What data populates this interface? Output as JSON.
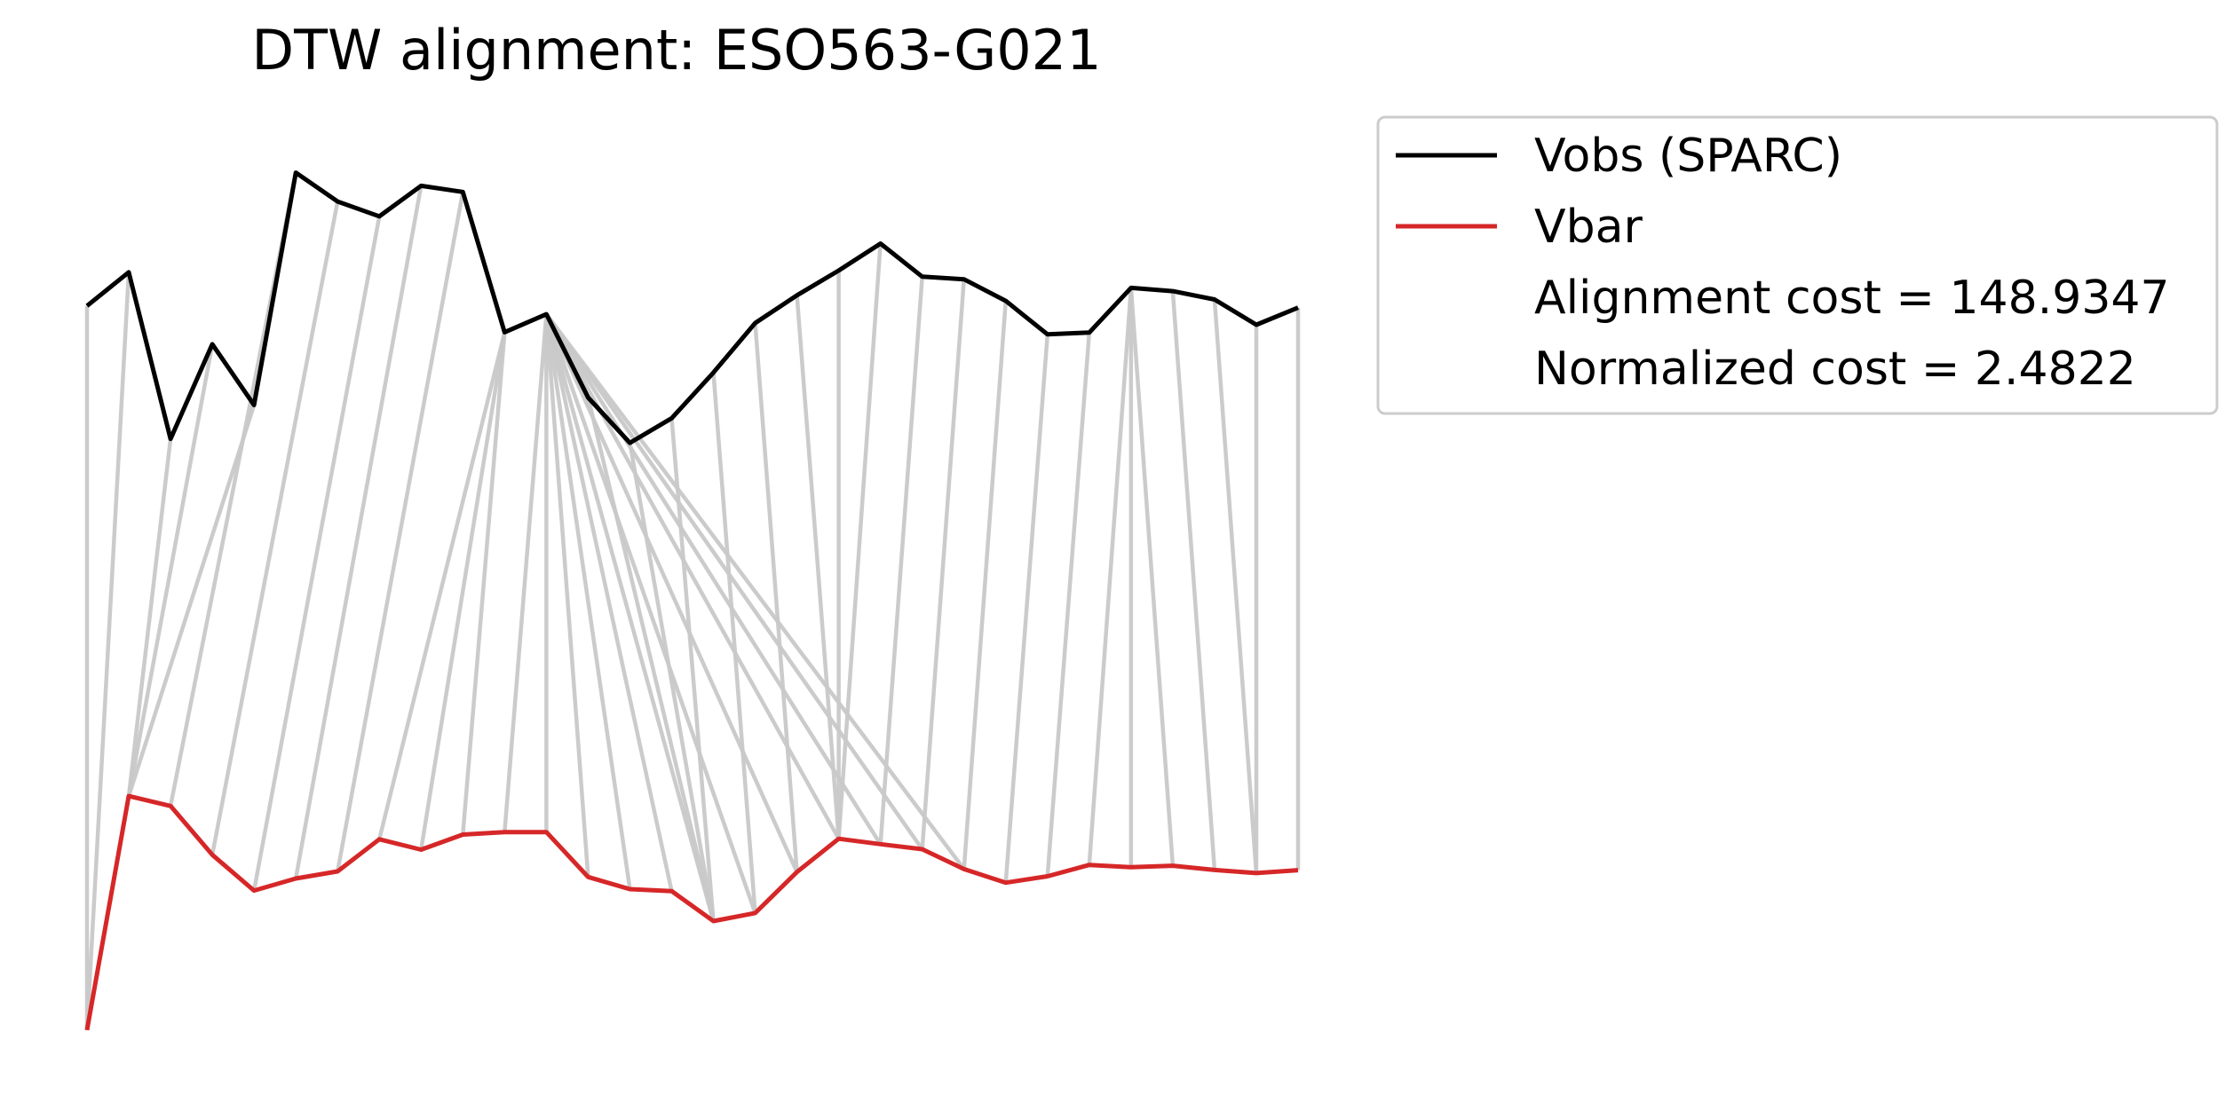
{
  "chart_data": {
    "type": "line",
    "title": "DTW alignment: ESO563-G021",
    "xlabel": "",
    "ylabel": "",
    "axes_visible": false,
    "grid": false,
    "legend_placement": "outside-top-right",
    "x": [
      0,
      1,
      2,
      3,
      4,
      5,
      6,
      7,
      8,
      9,
      10,
      11,
      12,
      13,
      14,
      15,
      16,
      17,
      18,
      19,
      20,
      21,
      22,
      23,
      24,
      25,
      26,
      27,
      28,
      29
    ],
    "series": [
      {
        "name": "Vobs (SPARC)",
        "color": "#000000",
        "values": [
          0.8145,
          0.8616,
          0.6284,
          0.7609,
          0.6759,
          1.0009,
          0.9605,
          0.9398,
          0.9825,
          0.9739,
          0.7776,
          0.8029,
          0.6863,
          0.6228,
          0.6573,
          0.7212,
          0.7905,
          0.8293,
          0.8639,
          0.9017,
          0.8553,
          0.8518,
          0.8214,
          0.7747,
          0.7771,
          0.8397,
          0.8351,
          0.8235,
          0.7881,
          0.812
        ]
      },
      {
        "name": "Vbar",
        "color": "#d62728",
        "values": [
          -0.1986,
          0.1288,
          0.1149,
          0.0466,
          -0.0034,
          0.0135,
          0.0234,
          0.0683,
          0.0538,
          0.0749,
          0.0784,
          0.0784,
          0.0156,
          -0.0014,
          -0.0042,
          -0.0462,
          -0.0348,
          0.0225,
          0.0691,
          0.0615,
          0.0544,
          0.0266,
          0.0076,
          0.0165,
          0.0324,
          0.0292,
          0.0313,
          0.0254,
          0.021,
          0.0251
        ]
      }
    ],
    "alignment_path": [
      [
        0,
        0
      ],
      [
        1,
        0
      ],
      [
        2,
        1
      ],
      [
        3,
        1
      ],
      [
        4,
        1
      ],
      [
        5,
        2
      ],
      [
        6,
        3
      ],
      [
        7,
        4
      ],
      [
        8,
        5
      ],
      [
        9,
        6
      ],
      [
        10,
        7
      ],
      [
        10,
        8
      ],
      [
        10,
        9
      ],
      [
        11,
        10
      ],
      [
        11,
        11
      ],
      [
        11,
        12
      ],
      [
        11,
        13
      ],
      [
        11,
        14
      ],
      [
        11,
        15
      ],
      [
        11,
        16
      ],
      [
        11,
        17
      ],
      [
        11,
        18
      ],
      [
        11,
        19
      ],
      [
        11,
        20
      ],
      [
        11,
        21
      ],
      [
        12,
        15
      ],
      [
        13,
        15
      ],
      [
        14,
        15
      ],
      [
        15,
        16
      ],
      [
        16,
        17
      ],
      [
        17,
        18
      ],
      [
        18,
        18
      ],
      [
        19,
        18
      ],
      [
        20,
        19
      ],
      [
        21,
        20
      ],
      [
        22,
        21
      ],
      [
        23,
        22
      ],
      [
        24,
        23
      ],
      [
        25,
        24
      ],
      [
        25,
        25
      ],
      [
        25,
        26
      ],
      [
        26,
        27
      ],
      [
        27,
        28
      ],
      [
        28,
        28
      ],
      [
        29,
        29
      ]
    ],
    "legend": [
      {
        "label": "Vobs (SPARC)",
        "color": "#000000",
        "has_line": true
      },
      {
        "label": "Vbar",
        "color": "#d62728",
        "has_line": true
      },
      {
        "label": "Alignment cost = 148.9347",
        "has_line": false
      },
      {
        "label": "Normalized cost = 2.4822",
        "has_line": false
      }
    ],
    "ylim": [
      -0.21,
      1.05
    ]
  }
}
